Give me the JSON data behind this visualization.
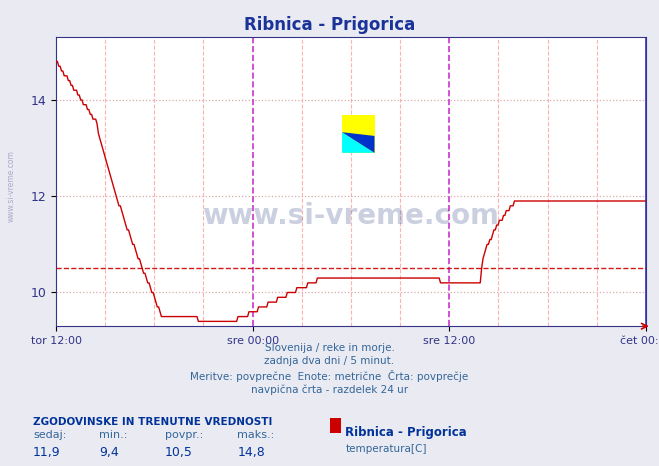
{
  "title": "Ribnica - Prigorica",
  "title_color": "#1a3399",
  "bg_color": "#eaeaf2",
  "plot_bg_color": "#ffffff",
  "y_min": 9.3,
  "y_max": 15.3,
  "y_ticks": [
    10,
    12,
    14
  ],
  "x_tick_labels": [
    "tor 12:00",
    "sre 00:00",
    "sre 12:00",
    "čet 00:00"
  ],
  "avg_value": 10.5,
  "line_color": "#cc0000",
  "avg_line_color": "#cc0000",
  "blue_vline_color": "#3333cc",
  "pink_vline_color": "#ffaaaa",
  "magenta_vline_color": "#cc33cc",
  "grid_color": "#ddaaaa",
  "watermark": "www.si-vreme.com",
  "watermark_color": "#334488",
  "footer_lines": [
    "Slovenija / reke in morje.",
    "zadnja dva dni / 5 minut.",
    "Meritve: povprečne  Enote: metrične  Črta: povprečje",
    "navpična črta - razdelek 24 ur"
  ],
  "legend_header": "ZGODOVINSKE IN TRENUTNE VREDNOSTI",
  "legend_cols": [
    "sedaj:",
    "min.:",
    "povpr.:",
    "maks.:"
  ],
  "legend_vals": [
    "11,9",
    "9,4",
    "10,5",
    "14,8"
  ],
  "station": "Ribnica - Prigorica",
  "param": "temperatura[C]"
}
